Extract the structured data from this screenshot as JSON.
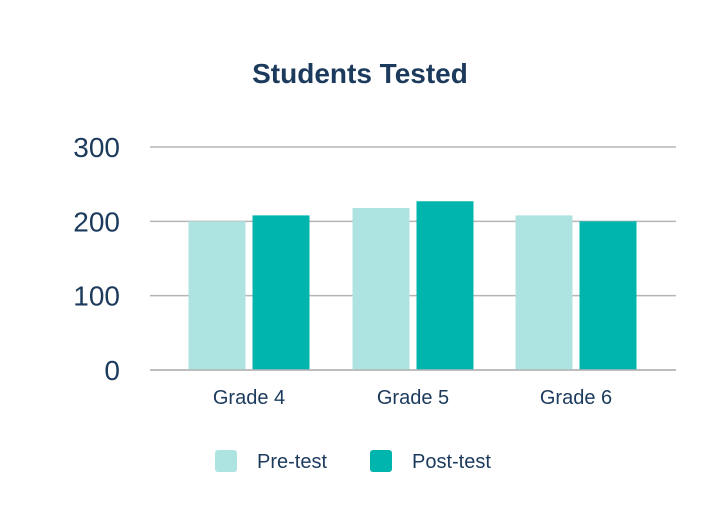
{
  "chart_data": {
    "type": "bar",
    "title": "Students Tested",
    "xlabel": "",
    "ylabel": "",
    "categories": [
      "Grade 4",
      "Grade 5",
      "Grade 6"
    ],
    "series": [
      {
        "name": "Pre-test",
        "color": "#ade3e0",
        "values": [
          200,
          218,
          208
        ]
      },
      {
        "name": "Post-test",
        "color": "#00b5ae",
        "values": [
          208,
          227,
          200
        ]
      }
    ],
    "ylim": [
      0,
      300
    ],
    "yticks": [
      "0",
      "100",
      "200",
      "300"
    ],
    "grid": true,
    "legend_position": "bottom",
    "gridline_color": "#b5b5b5",
    "text_color": "#1b3a5c"
  }
}
